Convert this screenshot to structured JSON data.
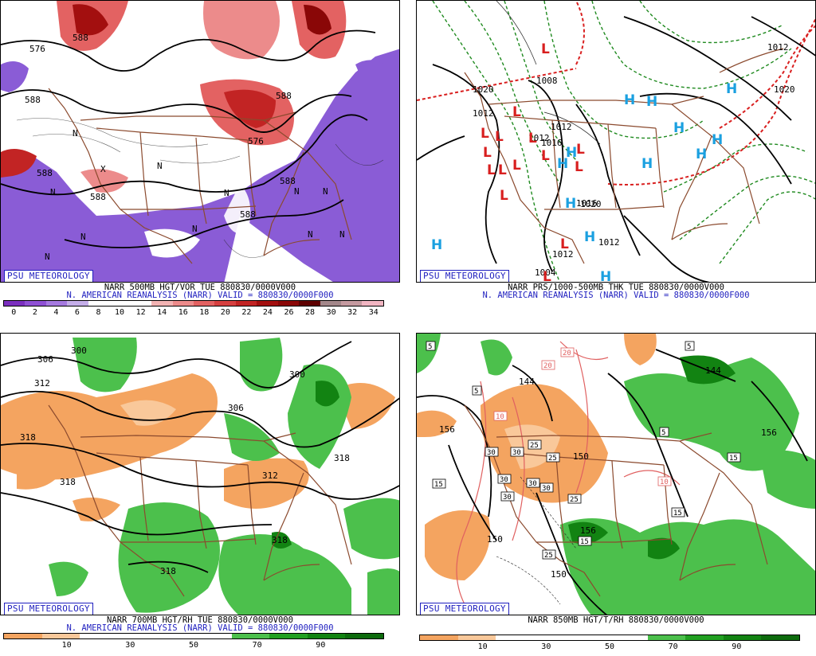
{
  "badge_text": "PSU METEOROLOGY",
  "panels": [
    {
      "title": "NARR 500MB HGT/VOR TUE 880830/0000V000",
      "subtitle": "N. AMERICAN REANALYSIS (NARR) VALID = 880830/0000F000",
      "contour_labels": [
        "576",
        "588",
        "588",
        "576",
        "588",
        "588",
        "588",
        "588",
        "588"
      ],
      "markers": [
        "X",
        "N",
        "N",
        "N",
        "N",
        "N",
        "N",
        "N",
        "N",
        "N",
        "N",
        "N"
      ],
      "colorbar": {
        "ticks": [
          "0",
          "2",
          "4",
          "6",
          "8",
          "10",
          "12",
          "14",
          "16",
          "18",
          "20",
          "22",
          "24",
          "26",
          "28",
          "30",
          "32",
          "34"
        ],
        "colors": [
          "#7b2fbf",
          "#8f50d4",
          "#a67ae0",
          "#c5aee9",
          "#ffffff",
          "#ffffff",
          "#ffffff",
          "#f2b3b3",
          "#ec8b8b",
          "#e36262",
          "#d64040",
          "#c22424",
          "#a30f0f",
          "#8a0707",
          "#5e0000",
          "#a3878a",
          "#c59aa0",
          "#f1b5c2"
        ]
      }
    },
    {
      "title": "NARR PRS/1000-500MB THK TUE 880830/0000V000",
      "subtitle": "N. AMERICAN REANALYSIS (NARR) VALID = 880830/0000F000",
      "contour_labels": [
        "1020",
        "1012",
        "1008",
        "1012",
        "1016",
        "1016",
        "1012",
        "1020",
        "1012",
        "1012",
        "1020",
        "1012",
        "1004"
      ],
      "highs": [
        "H",
        "H",
        "H",
        "H",
        "H",
        "H",
        "H",
        "H",
        "H",
        "H",
        "H",
        "H",
        "H"
      ],
      "lows": [
        "L",
        "L",
        "L",
        "L",
        "L",
        "L",
        "L",
        "L",
        "L",
        "L",
        "L",
        "L",
        "L",
        "L",
        "L"
      ]
    },
    {
      "title": "NARR 700MB HGT/RH TUE 880830/0000V000",
      "subtitle": "N. AMERICAN REANALYSIS (NARR) VALID = 880830/0000F000",
      "contour_labels": [
        "306",
        "300",
        "312",
        "318",
        "318",
        "306",
        "300",
        "312",
        "318",
        "318",
        "318"
      ],
      "colorbar": {
        "ticks": [
          "10",
          "30",
          "50",
          "70",
          "90"
        ],
        "colors": [
          "#f4a460",
          "#f9c89a",
          "#ffffff",
          "#ffffff",
          "#ffffff",
          "#ffffff",
          "#4cc04c",
          "#22a022",
          "#128312",
          "#0d6b0d"
        ]
      }
    },
    {
      "title": "NARR 850MB HGT/T/RH 880830/0000V000",
      "subtitle": "",
      "contour_labels": [
        "144",
        "156",
        "156",
        "150",
        "150",
        "150",
        "144",
        "156"
      ],
      "temp_labels": [
        "5",
        "5",
        "5",
        "5",
        "10",
        "10",
        "15",
        "15",
        "15",
        "15",
        "20",
        "20",
        "25",
        "25",
        "25",
        "25",
        "30",
        "30",
        "30",
        "30",
        "30",
        "30"
      ],
      "colorbar": {
        "ticks": [
          "10",
          "30",
          "50",
          "70",
          "90"
        ],
        "colors": [
          "#f4a460",
          "#f9c89a",
          "#ffffff",
          "#ffffff",
          "#ffffff",
          "#ffffff",
          "#4cc04c",
          "#22a022",
          "#128312",
          "#0d6b0d"
        ]
      }
    }
  ]
}
